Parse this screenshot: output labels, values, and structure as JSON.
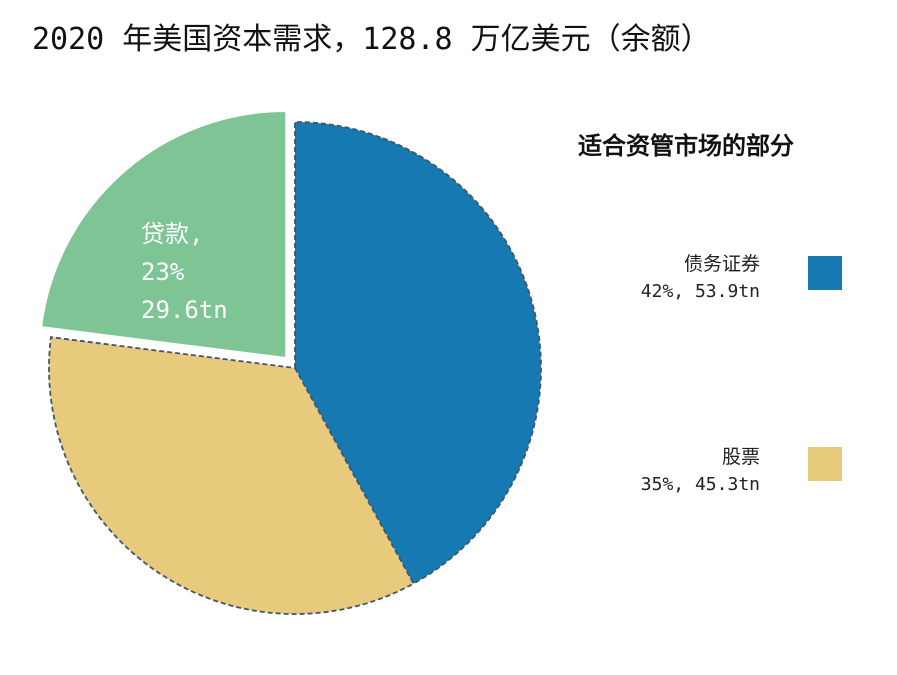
{
  "chart_data": {
    "type": "pie",
    "title": "2020 年美国资本需求，128.8 万亿美元（余额）",
    "legend_title": "适合资管市场的部分",
    "legend_position": "right",
    "slices": [
      {
        "name": "债务证券",
        "percent": 42,
        "value": 53.9,
        "pct_label": "42%",
        "value_label": "53.9tn",
        "color": "#1679b1",
        "exploded": false,
        "in_legend": true
      },
      {
        "name": "股票",
        "percent": 35,
        "value": 45.3,
        "pct_label": "35%",
        "value_label": "45.3tn",
        "color": "#e8ca7c",
        "exploded": false,
        "in_legend": true
      },
      {
        "name": "贷款",
        "percent": 23,
        "value": 29.6,
        "pct_label": "23%",
        "value_label": "29.6tn",
        "color": "#7ec495",
        "exploded": true,
        "in_legend": false
      }
    ],
    "legend": [
      {
        "label": "债务证券",
        "sub": "42%, 53.9tn",
        "color": "#1679b1"
      },
      {
        "label": "股票",
        "sub": "35%, 45.3tn",
        "color": "#e8ca7c"
      }
    ],
    "slice_labels": {
      "loan_name": "贷款,",
      "loan_pct": "23%",
      "loan_value": "29.6tn"
    }
  }
}
